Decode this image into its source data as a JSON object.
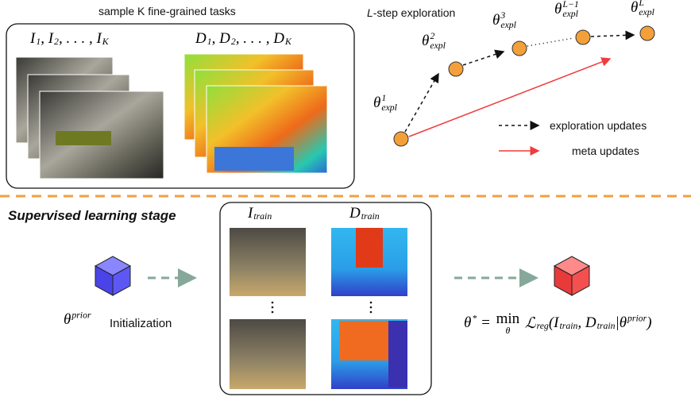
{
  "top": {
    "tasks_label": "sample K fine-grained tasks",
    "images_label": [
      {
        "t": "I",
        "sub": "1"
      },
      {
        "t": ", I",
        "sub": "2"
      },
      {
        "t": ", . . . , I",
        "sub": "K"
      }
    ],
    "depths_label": [
      {
        "t": "D",
        "sub": "1"
      },
      {
        "t": ", D",
        "sub": "2"
      },
      {
        "t": ", . . . , D",
        "sub": "K"
      }
    ],
    "exploration_title": {
      "italic": "L",
      "rest": "-step exploration"
    },
    "nodes": [
      [
        {
          "t": "θ",
          "sup": "1",
          "sub": "expl"
        }
      ],
      [
        {
          "t": "θ",
          "sup": "2",
          "sub": "expl"
        }
      ],
      [
        {
          "t": "θ",
          "sup": "3",
          "sub": "expl"
        }
      ],
      [
        {
          "t": "θ",
          "sup": "L−1",
          "sub": "expl"
        }
      ],
      [
        {
          "t": "θ",
          "sup": "L",
          "sub": "expl"
        }
      ]
    ],
    "legend": {
      "exploration": "exploration updates",
      "meta": "meta updates"
    }
  },
  "bottom": {
    "stage_title": "Supervised learning stage",
    "prior": [
      {
        "t": "θ",
        "sup": "prior"
      }
    ],
    "initialization": "Initialization",
    "train_images": [
      {
        "t": "I",
        "sub": "train"
      }
    ],
    "train_depths": [
      {
        "t": "D",
        "sub": "train"
      }
    ],
    "equation": [
      {
        "t": "θ",
        "sup": "*"
      },
      {
        "t": " = "
      },
      {
        "t": "min",
        "under": "θ"
      },
      {
        "t": " ℒ",
        "sub": "reg"
      },
      {
        "t": "(I",
        "sub": "train"
      },
      {
        "t": ", D",
        "sub": "train"
      },
      {
        "t": "|θ",
        "sup": "prior"
      },
      {
        "t": ")"
      }
    ]
  }
}
